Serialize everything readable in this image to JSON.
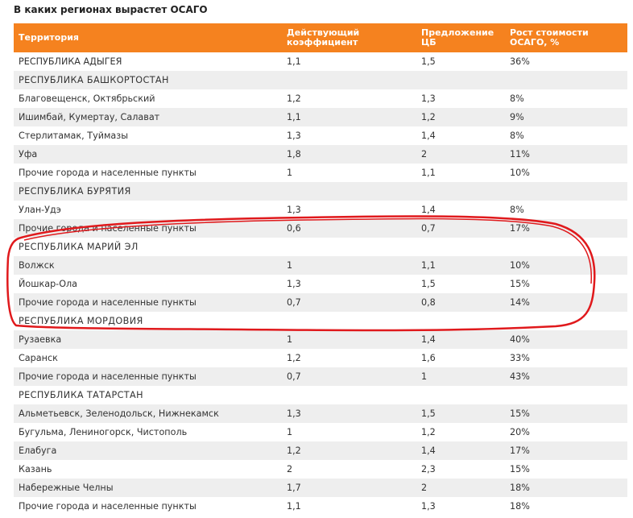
{
  "title": "В каких регионах вырастет ОСАГО",
  "headers": {
    "territory": "Территория",
    "coef_1": "Действующий",
    "coef_2": "коэффициент",
    "cb_1": "Предложение",
    "cb_2": "ЦБ",
    "growth_1": "Рост стоимости",
    "growth_2": "ОСАГО, %"
  },
  "rows": [
    {
      "name": "РЕСПУБЛИКА АДЫГЕЯ",
      "coef": "1,1",
      "cb": "1,5",
      "growth": "36%"
    },
    {
      "name": "РЕСПУБЛИКА БАШКОРТОСТАН",
      "coef": "",
      "cb": "",
      "growth": ""
    },
    {
      "name": "Благовещенск, Октябрьский",
      "coef": "1,2",
      "cb": "1,3",
      "growth": "8%"
    },
    {
      "name": "Ишимбай, Кумертау, Салават",
      "coef": "1,1",
      "cb": "1,2",
      "growth": "9%"
    },
    {
      "name": "Стерлитамак, Туймазы",
      "coef": "1,3",
      "cb": "1,4",
      "growth": "8%"
    },
    {
      "name": "Уфа",
      "coef": "1,8",
      "cb": "2",
      "growth": "11%"
    },
    {
      "name": "Прочие города и населенные пункты",
      "coef": "1",
      "cb": "1,1",
      "growth": "10%"
    },
    {
      "name": "РЕСПУБЛИКА БУРЯТИЯ",
      "coef": "",
      "cb": "",
      "growth": ""
    },
    {
      "name": "Улан-Удэ",
      "coef": "1,3",
      "cb": "1,4",
      "growth": "8%"
    },
    {
      "name": "Прочие города и населенные пункты",
      "coef": "0,6",
      "cb": "0,7",
      "growth": "17%"
    },
    {
      "name": "РЕСПУБЛИКА МАРИЙ ЭЛ",
      "coef": "",
      "cb": "",
      "growth": ""
    },
    {
      "name": "Волжск",
      "coef": "1",
      "cb": "1,1",
      "growth": "10%"
    },
    {
      "name": "Йошкар-Ола",
      "coef": "1,3",
      "cb": "1,5",
      "growth": "15%"
    },
    {
      "name": "Прочие города и населенные пункты",
      "coef": "0,7",
      "cb": "0,8",
      "growth": "14%"
    },
    {
      "name": "РЕСПУБЛИКА МОРДОВИЯ",
      "coef": "",
      "cb": "",
      "growth": ""
    },
    {
      "name": "Рузаевка",
      "coef": "1",
      "cb": "1,4",
      "growth": "40%"
    },
    {
      "name": "Саранск",
      "coef": "1,2",
      "cb": "1,6",
      "growth": "33%"
    },
    {
      "name": "Прочие города и населенные пункты",
      "coef": "0,7",
      "cb": "1",
      "growth": "43%"
    },
    {
      "name": "РЕСПУБЛИКА ТАТАРСТАН",
      "coef": "",
      "cb": "",
      "growth": ""
    },
    {
      "name": "Альметьевск, Зеленодольск, Нижнекамск",
      "coef": "1,3",
      "cb": "1,5",
      "growth": "15%"
    },
    {
      "name": "Бугульма, Лениногорск, Чистополь",
      "coef": "1",
      "cb": "1,2",
      "growth": "20%"
    },
    {
      "name": "Елабуга",
      "coef": "1,2",
      "cb": "1,4",
      "growth": "17%"
    },
    {
      "name": "Казань",
      "coef": "2",
      "cb": "2,3",
      "growth": "15%"
    },
    {
      "name": "Набережные Челны",
      "coef": "1,7",
      "cb": "2",
      "growth": "18%"
    },
    {
      "name": "Прочие города и населенные пункты",
      "coef": "1,1",
      "cb": "1,3",
      "growth": "18%"
    }
  ],
  "highlight": {
    "color": "#e0191c"
  }
}
